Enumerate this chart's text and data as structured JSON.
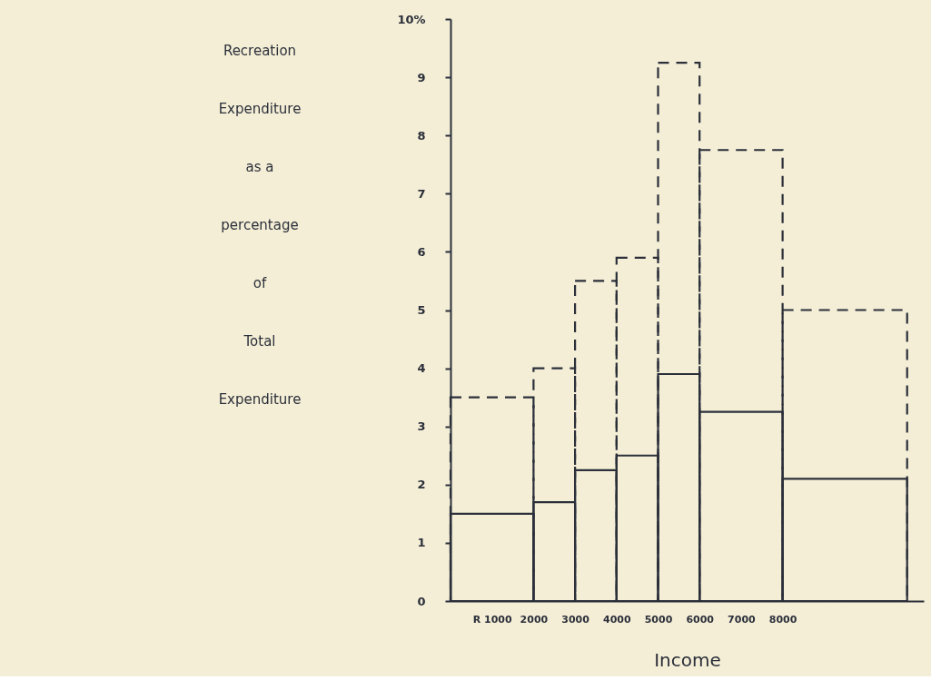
{
  "chart_data": {
    "type": "histogram",
    "xlabel": "Income",
    "ylabel": "Recreation\nExpenditure\nas  a\npercentage\nof\nTotal\nExpenditure",
    "bins": [
      0,
      2000,
      3000,
      4000,
      5000,
      6000,
      8000,
      11000
    ],
    "series": [
      {
        "color": "#2b2f3a",
        "line_style": "solid",
        "values": [
          1.5,
          1.7,
          2.25,
          2.5,
          3.9,
          3.25,
          2.1
        ]
      },
      {
        "color": "#2b2f3a",
        "line_style": "dashed",
        "values": [
          3.5,
          4.0,
          5.5,
          5.9,
          9.25,
          7.75,
          5.0
        ]
      }
    ],
    "xlim": [
      0,
      11400
    ],
    "xticks": [
      {
        "value": 1000,
        "label": "R 1000"
      },
      2000,
      3000,
      4000,
      5000,
      6000,
      7000,
      8000
    ],
    "ylim": [
      0,
      10
    ],
    "yticks": [
      0,
      1,
      2,
      3,
      4,
      5,
      6,
      7,
      8,
      9,
      {
        "value": 10,
        "label": "10%"
      }
    ],
    "grid": false
  }
}
